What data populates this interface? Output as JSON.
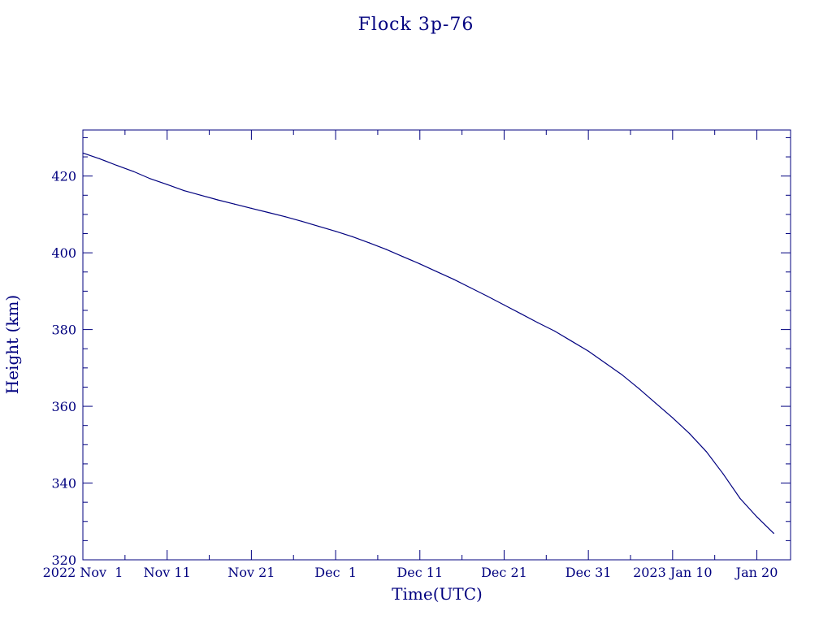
{
  "chart_data": {
    "type": "line",
    "title": "Flock 3p-76",
    "xlabel": "Time(UTC)",
    "ylabel": "Height (km)",
    "x_axis_type": "date",
    "xlim": [
      "2022-11-01",
      "2023-01-24"
    ],
    "ylim": [
      320,
      432
    ],
    "x_ticks": [
      {
        "date": "2022-11-01",
        "label": "2022 Nov  1"
      },
      {
        "date": "2022-11-11",
        "label": "Nov 11"
      },
      {
        "date": "2022-11-21",
        "label": "Nov 21"
      },
      {
        "date": "2022-12-01",
        "label": "Dec  1"
      },
      {
        "date": "2022-12-11",
        "label": "Dec 11"
      },
      {
        "date": "2022-12-21",
        "label": "Dec 21"
      },
      {
        "date": "2022-12-31",
        "label": "Dec 31"
      },
      {
        "date": "2023-01-10",
        "label": "2023 Jan 10"
      },
      {
        "date": "2023-01-20",
        "label": "Jan 20"
      }
    ],
    "y_ticks": [
      320,
      340,
      360,
      380,
      400,
      420
    ],
    "grid": false,
    "line_color": "#00007f",
    "series": [
      {
        "x": [
          "2022-11-01",
          "2022-11-03",
          "2022-11-05",
          "2022-11-07",
          "2022-11-09",
          "2022-11-11",
          "2022-11-13",
          "2022-11-15",
          "2022-11-17",
          "2022-11-19",
          "2022-11-21",
          "2022-11-23",
          "2022-11-25",
          "2022-11-27",
          "2022-11-29",
          "2022-12-01",
          "2022-12-03",
          "2022-12-05",
          "2022-12-07",
          "2022-12-09",
          "2022-12-11",
          "2022-12-13",
          "2022-12-15",
          "2022-12-17",
          "2022-12-19",
          "2022-12-21",
          "2022-12-23",
          "2022-12-25",
          "2022-12-27",
          "2022-12-29",
          "2022-12-31",
          "2023-01-02",
          "2023-01-04",
          "2023-01-06",
          "2023-01-08",
          "2023-01-10",
          "2023-01-12",
          "2023-01-14",
          "2023-01-16",
          "2023-01-18",
          "2023-01-20",
          "2023-01-22"
        ],
        "y": [
          426.0,
          424.5,
          422.8,
          421.2,
          419.3,
          417.8,
          416.2,
          415.0,
          413.8,
          412.7,
          411.6,
          410.5,
          409.4,
          408.2,
          406.9,
          405.6,
          404.2,
          402.6,
          400.9,
          399.0,
          397.1,
          395.1,
          393.1,
          390.9,
          388.7,
          386.4,
          384.1,
          381.8,
          379.6,
          377.0,
          374.4,
          371.3,
          368.2,
          364.6,
          360.8,
          357.0,
          352.9,
          348.2,
          342.4,
          336.0,
          331.2,
          326.9
        ]
      }
    ]
  }
}
